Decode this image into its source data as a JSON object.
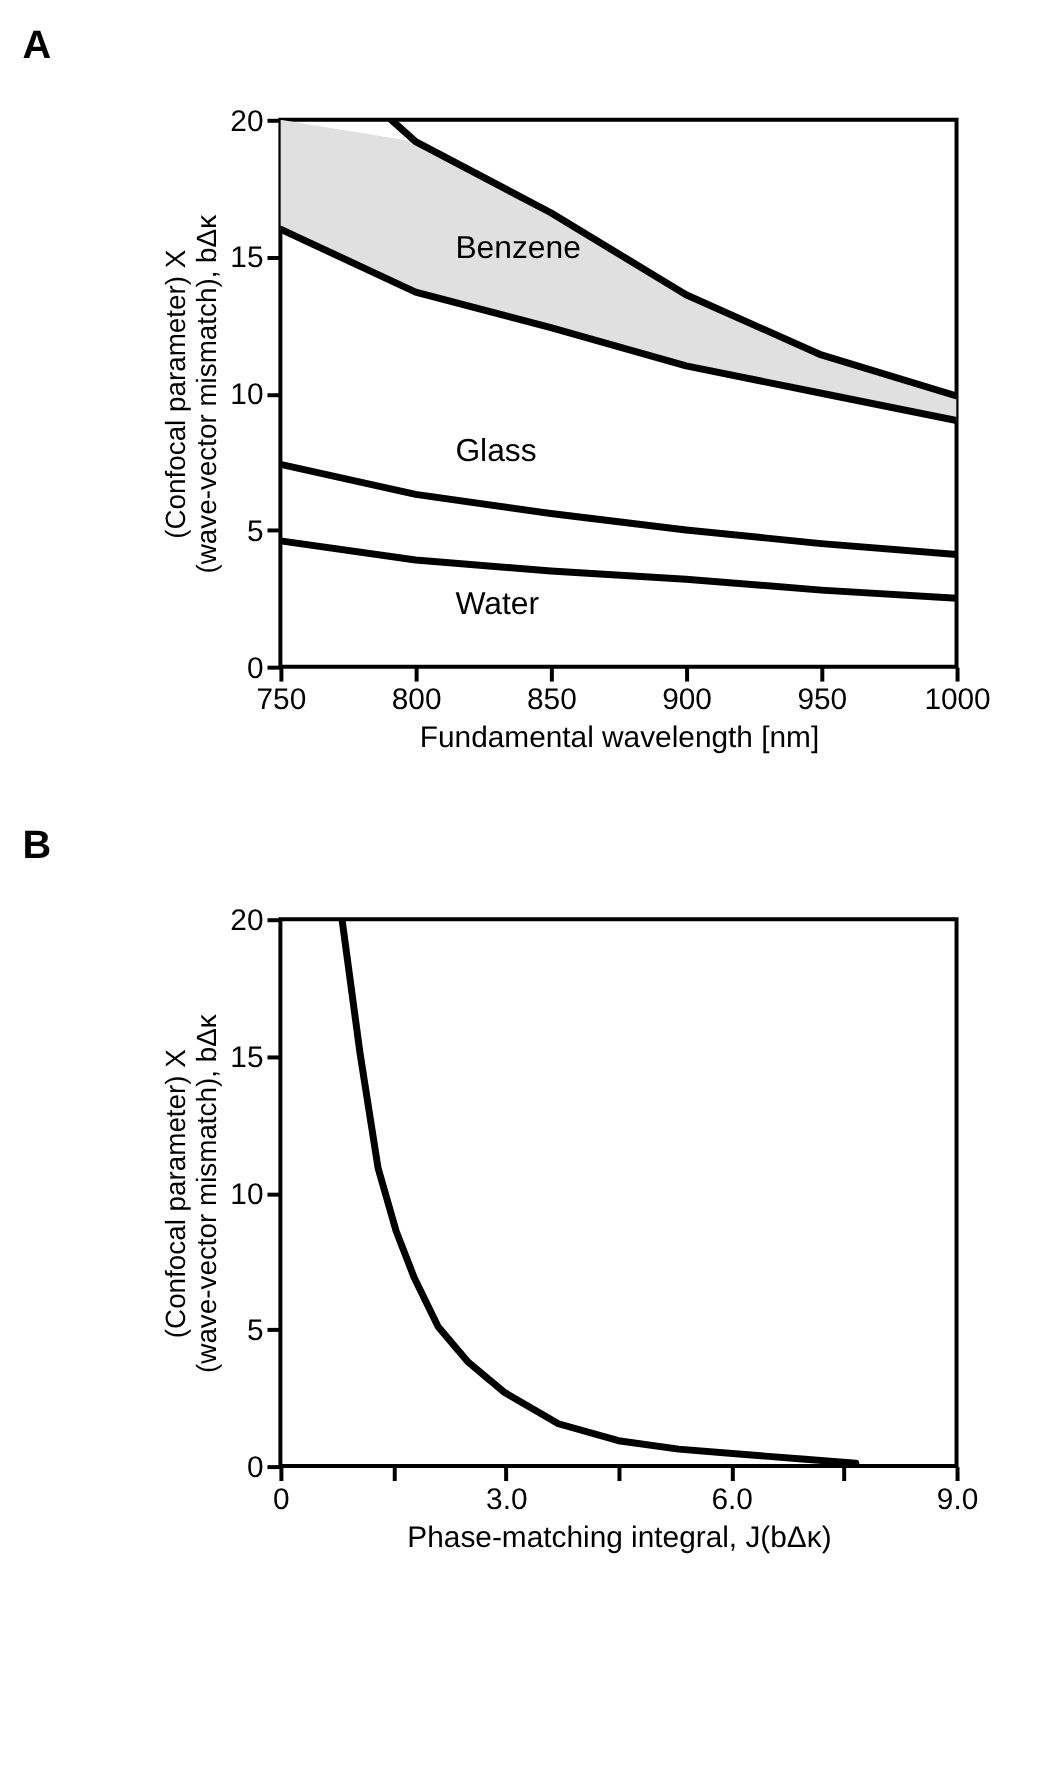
{
  "chart_data": [
    {
      "type": "line",
      "title": "A",
      "xlabel": "Fundamental wavelength [nm]",
      "ylabel": "(Confocal parameter) X\n(wave-vector mismatch), bΔκ",
      "xlim": [
        750,
        1000
      ],
      "ylim": [
        0,
        20
      ],
      "xticks": [
        750,
        800,
        850,
        900,
        950,
        1000
      ],
      "yticks": [
        0,
        5,
        10,
        15,
        20
      ],
      "grid": false,
      "series": [
        {
          "name": "Benzene",
          "color": "#000000",
          "x": [
            750,
            800,
            850,
            900,
            950,
            1000
          ],
          "values": [
            16.0,
            13.7,
            12.4,
            11.0,
            10.0,
            9.0
          ],
          "lower": [
            16.0,
            13.7,
            12.4,
            11.0,
            10.0,
            9.0
          ],
          "upper": [
            20,
            19.2,
            16.6,
            13.6,
            11.4,
            9.9
          ]
        },
        {
          "color": "#000000",
          "x": [
            791,
            800,
            850,
            900,
            950,
            1000
          ],
          "values": [
            20,
            19.2,
            16.6,
            13.6,
            11.4,
            9.9
          ]
        },
        {
          "name": "Glass",
          "color": "#000000",
          "x": [
            750,
            800,
            850,
            900,
            950,
            1000
          ],
          "values": [
            7.4,
            6.3,
            5.6,
            5.0,
            4.5,
            4.1
          ]
        },
        {
          "name": "Water",
          "color": "#000000",
          "x": [
            750,
            800,
            850,
            900,
            950,
            1000
          ],
          "values": [
            4.6,
            3.9,
            3.5,
            3.2,
            2.8,
            2.5
          ]
        }
      ]
    },
    {
      "type": "line",
      "title": "B",
      "xlabel": "Phase-matching integral,  J(bΔκ)",
      "ylabel": "(Confocal parameter) X\n(wave-vector mismatch), bΔκ",
      "xlim": [
        0,
        9
      ],
      "ylim": [
        0,
        20
      ],
      "xticks": [
        0,
        {
          "value": 1.5,
          "label": null
        },
        {
          "value": 3,
          "label": "3.0"
        },
        {
          "value": 4.5,
          "label": null
        },
        {
          "value": 6,
          "label": "6.0"
        },
        {
          "value": 7.5,
          "label": null
        },
        {
          "value": 9,
          "label": "9.0"
        }
      ],
      "yticks": [
        0,
        5,
        10,
        15,
        20
      ],
      "grid": false,
      "series": [
        {
          "color": "#000000",
          "x": [
            0.82,
            1.06,
            1.3,
            1.54,
            1.78,
            2.1,
            2.5,
            2.98,
            3.7,
            4.5,
            5.3,
            6.1,
            6.9,
            7.66
          ],
          "values": [
            20,
            15.1,
            10.9,
            8.6,
            6.9,
            5.1,
            3.8,
            2.7,
            1.55,
            0.93,
            0.62,
            0.44,
            0.27,
            0.11
          ]
        }
      ]
    }
  ]
}
